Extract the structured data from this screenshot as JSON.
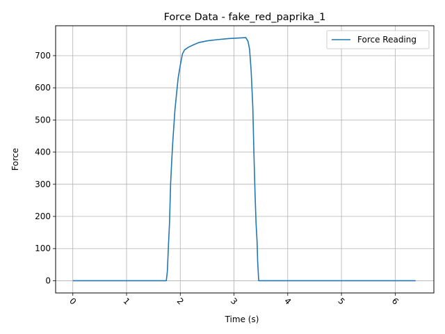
{
  "chart_data": {
    "type": "line",
    "title": "Force Data - fake_red_paprika_1",
    "xlabel": "Time (s)",
    "ylabel": "Force",
    "xlim": [
      -0.32,
      6.72
    ],
    "ylim": [
      -38,
      793
    ],
    "xticks": [
      0,
      1,
      2,
      3,
      4,
      5,
      6
    ],
    "yticks": [
      0,
      100,
      200,
      300,
      400,
      500,
      600,
      700
    ],
    "grid": true,
    "legend": {
      "position": "top-right"
    },
    "series": [
      {
        "name": "Force Reading",
        "color": "#1f77b4",
        "points": [
          [
            0.0,
            0
          ],
          [
            1.0,
            0
          ],
          [
            1.74,
            0
          ],
          [
            1.76,
            30
          ],
          [
            1.78,
            110
          ],
          [
            1.8,
            180
          ],
          [
            1.82,
            300
          ],
          [
            1.84,
            370
          ],
          [
            1.86,
            430
          ],
          [
            1.88,
            480
          ],
          [
            1.9,
            530
          ],
          [
            1.93,
            580
          ],
          [
            1.96,
            630
          ],
          [
            2.0,
            670
          ],
          [
            2.04,
            705
          ],
          [
            2.08,
            718
          ],
          [
            2.15,
            726
          ],
          [
            2.25,
            734
          ],
          [
            2.35,
            741
          ],
          [
            2.5,
            746
          ],
          [
            2.7,
            750
          ],
          [
            2.9,
            753
          ],
          [
            3.1,
            755
          ],
          [
            3.22,
            756
          ],
          [
            3.26,
            745
          ],
          [
            3.29,
            720
          ],
          [
            3.32,
            650
          ],
          [
            3.35,
            540
          ],
          [
            3.37,
            400
          ],
          [
            3.39,
            280
          ],
          [
            3.41,
            180
          ],
          [
            3.43,
            120
          ],
          [
            3.44,
            60
          ],
          [
            3.46,
            0
          ],
          [
            4.0,
            0
          ],
          [
            5.0,
            0
          ],
          [
            6.0,
            0
          ],
          [
            6.38,
            0
          ]
        ]
      }
    ]
  }
}
